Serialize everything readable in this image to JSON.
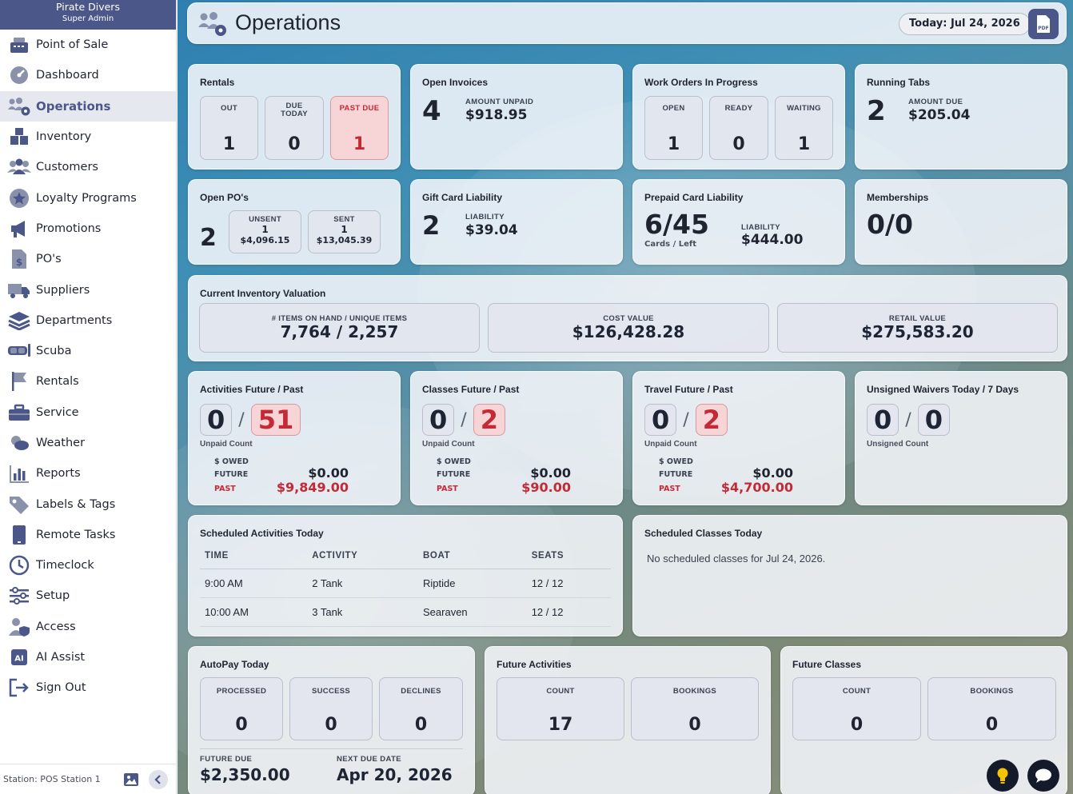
{
  "app": {
    "business": "Pirate Divers",
    "role": "Super Admin"
  },
  "nav": [
    {
      "label": "Point of Sale",
      "icon": "register-icon"
    },
    {
      "label": "Dashboard",
      "icon": "gauge-icon"
    },
    {
      "label": "Operations",
      "icon": "users-gear-icon",
      "active": true
    },
    {
      "label": "Inventory",
      "icon": "boxes-icon"
    },
    {
      "label": "Customers",
      "icon": "users-icon"
    },
    {
      "label": "Loyalty Programs",
      "icon": "star-badge-icon"
    },
    {
      "label": "Promotions",
      "icon": "megaphone-icon"
    },
    {
      "label": "PO's",
      "icon": "dollar-document-icon"
    },
    {
      "label": "Suppliers",
      "icon": "truck-icon"
    },
    {
      "label": "Departments",
      "icon": "layers-icon"
    },
    {
      "label": "Scuba",
      "icon": "mask-icon"
    },
    {
      "label": "Rentals",
      "icon": "flag-icon"
    },
    {
      "label": "Service",
      "icon": "toolbox-icon"
    },
    {
      "label": "Weather",
      "icon": "weather-icon"
    },
    {
      "label": "Reports",
      "icon": "bar-chart-icon"
    },
    {
      "label": "Labels & Tags",
      "icon": "tags-icon"
    },
    {
      "label": "Remote Tasks",
      "icon": "tablet-icon"
    },
    {
      "label": "Timeclock",
      "icon": "clock-icon"
    },
    {
      "label": "Setup",
      "icon": "sliders-icon"
    },
    {
      "label": "Access",
      "icon": "user-shield-icon"
    },
    {
      "label": "AI Assist",
      "icon": "ai-chip-icon"
    },
    {
      "label": "Sign Out",
      "icon": "sign-out-icon"
    }
  ],
  "footer": {
    "station": "Station: POS Station 1"
  },
  "header": {
    "title": "Operations",
    "today": "Today: Jul 24, 2026"
  },
  "rentals": {
    "title": "Rentals",
    "out_label": "OUT",
    "out": "1",
    "due_label_1": "DUE",
    "due_label_2": "TODAY",
    "due": "0",
    "past_label": "PAST DUE",
    "past": "1"
  },
  "invoices": {
    "title": "Open Invoices",
    "count": "4",
    "amount_label": "AMOUNT UNPAID",
    "amount": "$918.95"
  },
  "work_orders": {
    "title": "Work Orders In Progress",
    "open_label": "OPEN",
    "open": "1",
    "ready_label": "READY",
    "ready": "0",
    "waiting_label": "WAITING",
    "waiting": "1"
  },
  "tabs": {
    "title": "Running Tabs",
    "count": "2",
    "amount_label": "AMOUNT DUE",
    "amount": "$205.04"
  },
  "pos": {
    "title": "Open PO's",
    "count": "2",
    "unsent_label": "UNSENT",
    "unsent_count": "1",
    "unsent_amount": "$4,096.15",
    "sent_label": "SENT",
    "sent_count": "1",
    "sent_amount": "$13,045.39"
  },
  "gift": {
    "title": "Gift Card Liability",
    "count": "2",
    "label": "LIABILITY",
    "amount": "$39.04"
  },
  "prepaid": {
    "title": "Prepaid Card Liability",
    "ratio": "6/45",
    "sub": "Cards / Left",
    "label": "LIABILITY",
    "amount": "$444.00"
  },
  "memberships": {
    "title": "Memberships",
    "value": "0/0"
  },
  "valuation": {
    "title": "Current Inventory Valuation",
    "items_label": "# ITEMS ON HAND / UNIQUE ITEMS",
    "items": "7,764 / 2,257",
    "cost_label": "COST VALUE",
    "cost": "$126,428.28",
    "retail_label": "RETAIL VALUE",
    "retail": "$275,583.20"
  },
  "activities_fp": {
    "title": "Activities Future / Past",
    "future": "0",
    "past": "51",
    "unpaid": "Unpaid Count",
    "owed_label": "$ OWED",
    "future_label": "FUTURE",
    "past_label": "PAST",
    "future_owed": "$0.00",
    "past_owed": "$9,849.00"
  },
  "classes_fp": {
    "title": "Classes Future / Past",
    "future": "0",
    "past": "2",
    "unpaid": "Unpaid Count",
    "owed_label": "$ OWED",
    "future_label": "FUTURE",
    "past_label": "PAST",
    "future_owed": "$0.00",
    "past_owed": "$90.00"
  },
  "travel_fp": {
    "title": "Travel Future / Past",
    "future": "0",
    "past": "2",
    "unpaid": "Unpaid Count",
    "owed_label": "$ OWED",
    "future_label": "FUTURE",
    "past_label": "PAST",
    "future_owed": "$0.00",
    "past_owed": "$4,700.00"
  },
  "waivers": {
    "title": "Unsigned Waivers Today / 7 Days",
    "today": "0",
    "week": "0",
    "sub": "Unsigned Count"
  },
  "sched_activities": {
    "title": "Scheduled Activities Today",
    "headers": [
      "TIME",
      "ACTIVITY",
      "BOAT",
      "SEATS"
    ],
    "rows": [
      [
        "9:00 AM",
        "2 Tank",
        "Riptide",
        "12 / 12"
      ],
      [
        "10:00 AM",
        "3 Tank",
        "Searaven",
        "12 / 12"
      ]
    ]
  },
  "sched_classes": {
    "title": "Scheduled Classes Today",
    "empty": "No scheduled classes for Jul 24, 2026."
  },
  "autopay": {
    "title": "AutoPay Today",
    "processed_label": "PROCESSED",
    "processed": "0",
    "success_label": "SUCCESS",
    "success": "0",
    "declines_label": "DECLINES",
    "declines": "0",
    "future_due_label": "FUTURE DUE",
    "future_due": "$2,350.00",
    "next_due_label": "NEXT DUE DATE",
    "next_due": "Apr 20, 2026"
  },
  "future_activities": {
    "title": "Future Activities",
    "count_label": "COUNT",
    "count": "17",
    "bookings_label": "BOOKINGS",
    "bookings": "0"
  },
  "future_classes": {
    "title": "Future Classes",
    "count_label": "COUNT",
    "count": "0",
    "bookings_label": "BOOKINGS",
    "bookings": "0"
  },
  "colors": {
    "brand": "#4a5788",
    "danger": "#c42a36",
    "accent_yellow": "#f5c400"
  }
}
